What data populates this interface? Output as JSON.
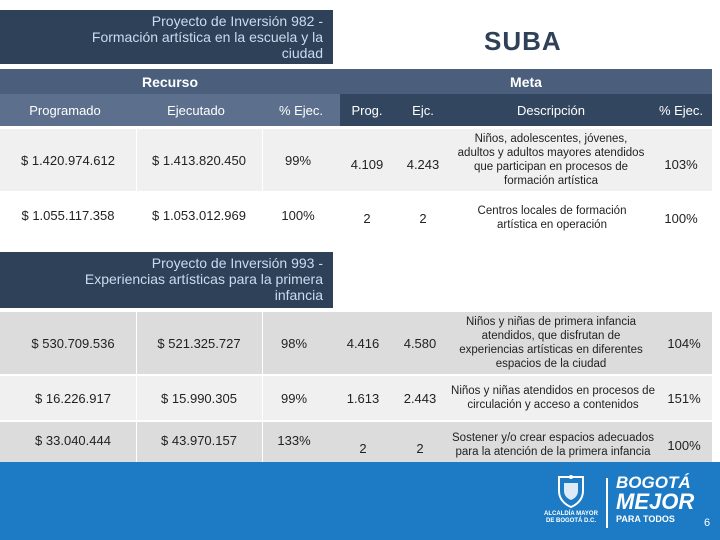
{
  "slide": {
    "locality": "SUBA",
    "page_number": "6"
  },
  "project1": {
    "title_lines": [
      "Proyecto de Inversión  982 -",
      "Formación artística en la escuela y la",
      "ciudad"
    ]
  },
  "project2": {
    "title_lines": [
      "Proyecto de Inversión  993 -",
      "Experiencias artísticas para la primera",
      "infancia"
    ]
  },
  "headers": {
    "recurso": "Recurso",
    "meta": "Meta",
    "programado": "Programado",
    "ejecutado": "Ejecutado",
    "pct_ejec_recurso": "% Ejec.",
    "prog": "Prog.",
    "ejc": "Ejc.",
    "descripcion": "Descripción",
    "pct_ejec_meta": "% Ejec."
  },
  "rows": [
    {
      "programado": "$ 1.420.974.612",
      "ejecutado": "$ 1.413.820.450",
      "pct_rec": "99%",
      "prog": "4.109",
      "ejc": "4.243",
      "desc": "Niños, adolescentes, jóvenes, adultos y adultos mayores atendidos que participan en procesos de formación artística",
      "pct_meta": "103%"
    },
    {
      "programado": "$ 1.055.117.358",
      "ejecutado": "$ 1.053.012.969",
      "pct_rec": "100%",
      "prog": "2",
      "ejc": "2",
      "desc": "Centros locales de formación artística en operación",
      "pct_meta": "100%"
    },
    {
      "programado": "$ 530.709.536",
      "ejecutado": "$ 521.325.727",
      "pct_rec": "98%",
      "prog": "4.416",
      "ejc": "4.580",
      "desc": "Niños y niñas de primera infancia atendidos, que disfrutan de experiencias artísticas en diferentes espacios de la ciudad",
      "pct_meta": "104%"
    },
    {
      "programado": "$ 16.226.917",
      "ejecutado": "$ 15.990.305",
      "pct_rec": "99%",
      "prog": "1.613",
      "ejc": "2.443",
      "desc": "Niños y niñas atendidos en procesos de circulación y acceso a contenidos",
      "pct_meta": "151%"
    },
    {
      "programado": "$ 33.040.444",
      "ejecutado": "$ 43.970.157",
      "pct_rec": "133%",
      "prog": "2",
      "ejc": "2",
      "desc": "Sostener y/o crear espacios adecuados para la atención de la primera infancia",
      "pct_meta": "100%"
    }
  ],
  "footer": {
    "seal_text_1": "ALCALDÍA MAYOR",
    "seal_text_2": "DE BOGOTÁ D.C.",
    "brand_line_1": "BOGOTÁ",
    "brand_line_2": "MEJOR",
    "brand_line_3": "PARA TODOS"
  },
  "colors": {
    "dark_navy": "#2f4159",
    "header_blue": "#4b5f7d",
    "footer_blue": "#1c7bc4"
  }
}
